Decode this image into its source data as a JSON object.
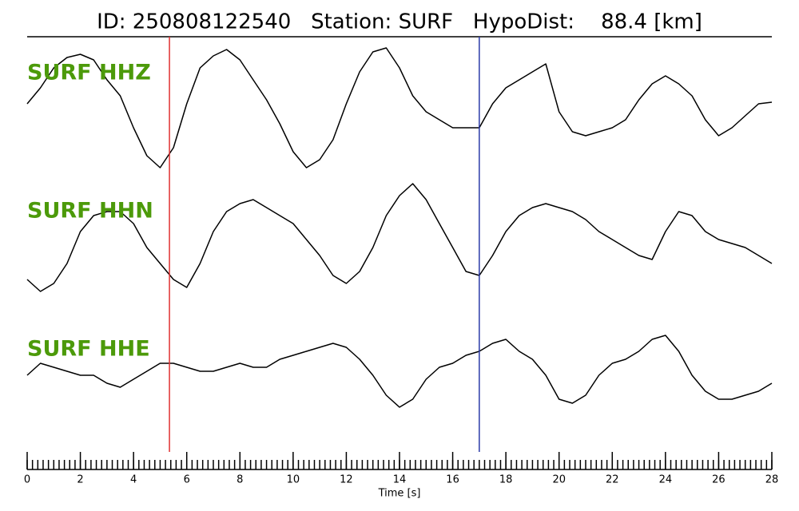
{
  "chart_data": {
    "type": "line",
    "title": "ID: 250808122540   Station: SURF   HypoDist:    88.4 [km]",
    "xlabel": "Time [s]",
    "xlim": [
      0,
      28
    ],
    "xticks": [
      0,
      2,
      4,
      6,
      8,
      10,
      12,
      14,
      16,
      18,
      20,
      22,
      24,
      26,
      28
    ],
    "xminor": 0.2,
    "label_color": "#4c9a0a",
    "vlines": [
      {
        "x": 5.35,
        "color": "#e03030"
      },
      {
        "x": 17.0,
        "color": "#2a3aa8"
      }
    ],
    "x": [
      0,
      0.5,
      1,
      1.5,
      2,
      2.5,
      3,
      3.5,
      4,
      4.5,
      5,
      5.5,
      6,
      6.5,
      7,
      7.5,
      8,
      8.5,
      9,
      9.5,
      10,
      10.5,
      11,
      11.5,
      12,
      12.5,
      13,
      13.5,
      14,
      14.5,
      15,
      15.5,
      16,
      16.5,
      17,
      17.5,
      18,
      18.5,
      19,
      19.5,
      20,
      20.5,
      21,
      21.5,
      22,
      22.5,
      23,
      23.5,
      24,
      24.5,
      25,
      25.5,
      26,
      26.5,
      27,
      27.5,
      28
    ],
    "series": [
      {
        "name": "SURF HHZ",
        "color": "#000000",
        "ylim": [
          -85,
          85
        ],
        "values": [
          7,
          27,
          52,
          65,
          69,
          62,
          37,
          17,
          -23,
          -58,
          -73,
          -48,
          7,
          52,
          67,
          75,
          62,
          37,
          12,
          -18,
          -53,
          -73,
          -63,
          -38,
          7,
          47,
          72,
          77,
          52,
          17,
          -3,
          -13,
          -23,
          -23,
          -23,
          7,
          27,
          37,
          47,
          57,
          -3,
          -28,
          -33,
          -28,
          -23,
          -13,
          12,
          32,
          42,
          32,
          17,
          -13,
          -33,
          -23,
          -8,
          7,
          9
        ]
      },
      {
        "name": "SURF HHN",
        "color": "#000000",
        "ylim": [
          -85,
          85
        ],
        "values": [
          -53,
          -68,
          -58,
          -33,
          7,
          27,
          32,
          32,
          17,
          -13,
          -33,
          -53,
          -63,
          -33,
          7,
          32,
          42,
          47,
          37,
          27,
          17,
          -3,
          -23,
          -48,
          -58,
          -43,
          -13,
          27,
          52,
          67,
          47,
          17,
          -13,
          -43,
          -48,
          -23,
          7,
          27,
          37,
          42,
          37,
          32,
          22,
          7,
          -3,
          -13,
          -23,
          -28,
          7,
          32,
          27,
          7,
          -3,
          -8,
          -13,
          -23,
          -33
        ]
      },
      {
        "name": "SURF HHE",
        "color": "#000000",
        "ylim": [
          -85,
          85
        ],
        "values": [
          -5,
          10,
          5,
          0,
          -5,
          -5,
          -15,
          -20,
          -10,
          0,
          10,
          10,
          5,
          0,
          0,
          5,
          10,
          5,
          5,
          15,
          20,
          25,
          30,
          35,
          30,
          15,
          -5,
          -30,
          -45,
          -35,
          -10,
          5,
          10,
          20,
          25,
          35,
          40,
          25,
          15,
          -5,
          -35,
          -40,
          -30,
          -5,
          10,
          15,
          25,
          40,
          45,
          25,
          -5,
          -25,
          -35,
          -35,
          -30,
          -25,
          -15
        ]
      }
    ]
  }
}
